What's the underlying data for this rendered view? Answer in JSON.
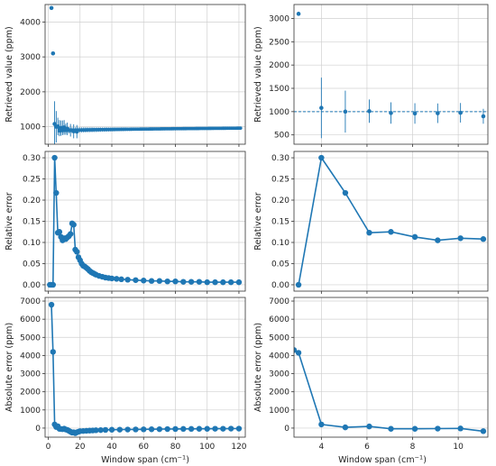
{
  "figure": {
    "accent_color": "#1f77b4",
    "xlabel_text": "Window span (cm",
    "xlabel_sup": "−1",
    "xlabel_close": ")"
  },
  "chart_data": [
    {
      "id": "top-left",
      "type": "scatter",
      "ylabel": "Retrieved value (ppm)",
      "xlim": [
        -2,
        124
      ],
      "ylim": [
        500,
        4500
      ],
      "xticks": [
        0,
        20,
        40,
        60,
        80,
        100,
        120
      ],
      "yticks": [
        1000,
        2000,
        3000,
        4000
      ],
      "show_xtick_labels": false,
      "grid": true,
      "dense": {
        "x_start": 7,
        "x_end": 121,
        "x_step": 1,
        "y_start": 880,
        "y_end": 960,
        "err_start": 110,
        "err_end": 12
      },
      "points": [
        {
          "x": 2.0,
          "y": 4400,
          "err": 0
        },
        {
          "x": 3.0,
          "y": 3100,
          "err": 0
        },
        {
          "x": 4.0,
          "y": 1080,
          "err": 650
        },
        {
          "x": 5.0,
          "y": 1000,
          "err": 450
        },
        {
          "x": 6.0,
          "y": 1010,
          "err": 250
        },
        {
          "x": 7.0,
          "y": 960,
          "err": 230
        },
        {
          "x": 8.0,
          "y": 960,
          "err": 220
        },
        {
          "x": 9.0,
          "y": 970,
          "err": 210
        },
        {
          "x": 10.0,
          "y": 980,
          "err": 210
        },
        {
          "x": 11.0,
          "y": 930,
          "err": 160
        },
        {
          "x": 12.0,
          "y": 940,
          "err": 180
        },
        {
          "x": 14.0,
          "y": 900,
          "err": 180
        },
        {
          "x": 16.0,
          "y": 870,
          "err": 200
        },
        {
          "x": 18.0,
          "y": 860,
          "err": 190
        }
      ]
    },
    {
      "id": "top-right",
      "type": "scatter",
      "ylabel": "Retrieved value (ppm)",
      "xlim": [
        2.8,
        11.3
      ],
      "ylim": [
        300,
        3300
      ],
      "xticks": [
        4,
        6,
        8,
        10
      ],
      "yticks": [
        500,
        1000,
        1500,
        2000,
        2500,
        3000
      ],
      "show_xtick_labels": false,
      "grid": true,
      "reference_line": 1000,
      "points": [
        {
          "x": 3.0,
          "y": 3100,
          "err": 0
        },
        {
          "x": 4.0,
          "y": 1080,
          "err": 650
        },
        {
          "x": 5.05,
          "y": 1000,
          "err": 450
        },
        {
          "x": 6.1,
          "y": 1010,
          "err": 250
        },
        {
          "x": 7.05,
          "y": 970,
          "err": 230
        },
        {
          "x": 8.1,
          "y": 960,
          "err": 220
        },
        {
          "x": 9.1,
          "y": 965,
          "err": 210
        },
        {
          "x": 10.1,
          "y": 975,
          "err": 210
        },
        {
          "x": 11.1,
          "y": 900,
          "err": 160
        }
      ]
    },
    {
      "id": "mid-left",
      "type": "line",
      "ylabel": "Relative error",
      "xlim": [
        -2,
        124
      ],
      "ylim": [
        -0.015,
        0.315
      ],
      "xticks": [
        0,
        20,
        40,
        60,
        80,
        100,
        120
      ],
      "yticks": [
        0.0,
        0.05,
        0.1,
        0.15,
        0.2,
        0.25,
        0.3
      ],
      "ytick_labels": [
        "0.00",
        "0.05",
        "0.10",
        "0.15",
        "0.20",
        "0.25",
        "0.30"
      ],
      "show_xtick_labels": false,
      "grid": true,
      "x": [
        1,
        2,
        3,
        4,
        5,
        6,
        7,
        8,
        9,
        10,
        11,
        12,
        13,
        14,
        15,
        16,
        17,
        18,
        19,
        20,
        21,
        22,
        23,
        24,
        25,
        26,
        27,
        28,
        29,
        30,
        32,
        34,
        36,
        38,
        40,
        43,
        46,
        50,
        55,
        60,
        65,
        70,
        75,
        80,
        85,
        90,
        95,
        100,
        105,
        110,
        115,
        120
      ],
      "y": [
        0.0,
        0.0,
        0.0,
        0.3,
        0.217,
        0.123,
        0.125,
        0.113,
        0.105,
        0.11,
        0.108,
        0.112,
        0.115,
        0.12,
        0.145,
        0.142,
        0.083,
        0.078,
        0.065,
        0.058,
        0.05,
        0.045,
        0.043,
        0.04,
        0.037,
        0.033,
        0.03,
        0.028,
        0.026,
        0.024,
        0.021,
        0.019,
        0.017,
        0.016,
        0.015,
        0.014,
        0.013,
        0.012,
        0.011,
        0.01,
        0.009,
        0.009,
        0.008,
        0.008,
        0.007,
        0.007,
        0.007,
        0.006,
        0.006,
        0.006,
        0.006,
        0.006
      ]
    },
    {
      "id": "mid-right",
      "type": "line",
      "ylabel": "Relative error",
      "xlim": [
        2.8,
        11.3
      ],
      "ylim": [
        -0.015,
        0.315
      ],
      "xticks": [
        4,
        6,
        8,
        10
      ],
      "yticks": [
        0.0,
        0.05,
        0.1,
        0.15,
        0.2,
        0.25,
        0.3
      ],
      "ytick_labels": [
        "0.00",
        "0.05",
        "0.10",
        "0.15",
        "0.20",
        "0.25",
        "0.30"
      ],
      "show_xtick_labels": false,
      "grid": true,
      "x": [
        3.0,
        4.0,
        5.05,
        6.1,
        7.05,
        8.1,
        9.1,
        10.1,
        11.1
      ],
      "y": [
        0.0,
        0.3,
        0.217,
        0.123,
        0.125,
        0.113,
        0.105,
        0.11,
        0.108
      ]
    },
    {
      "id": "bottom-left",
      "type": "line",
      "ylabel": "Absolute error (ppm)",
      "xlim": [
        -2,
        124
      ],
      "ylim": [
        -500,
        7200
      ],
      "xticks": [
        0,
        20,
        40,
        60,
        80,
        100,
        120
      ],
      "yticks": [
        0,
        1000,
        2000,
        3000,
        4000,
        5000,
        6000,
        7000
      ],
      "show_xtick_labels": true,
      "grid": true,
      "x": [
        2,
        3,
        4,
        5,
        6,
        7,
        8,
        9,
        10,
        11,
        12,
        13,
        14,
        15,
        16,
        17,
        18,
        19,
        20,
        22,
        24,
        26,
        28,
        30,
        33,
        36,
        40,
        45,
        50,
        55,
        60,
        65,
        70,
        75,
        80,
        85,
        90,
        95,
        100,
        105,
        110,
        115,
        120
      ],
      "y": [
        6800,
        4200,
        200,
        60,
        100,
        -40,
        -50,
        -60,
        -30,
        -80,
        -100,
        -150,
        -200,
        -250,
        -230,
        -280,
        -230,
        -200,
        -170,
        -160,
        -150,
        -140,
        -130,
        -120,
        -110,
        -100,
        -90,
        -85,
        -80,
        -75,
        -70,
        -65,
        -60,
        -55,
        -50,
        -45,
        -45,
        -40,
        -40,
        -35,
        -35,
        -30,
        -30
      ]
    },
    {
      "id": "bottom-right",
      "type": "line",
      "ylabel": "Absolute error (ppm)",
      "xlim": [
        2.8,
        11.3
      ],
      "ylim": [
        -500,
        7200
      ],
      "xticks": [
        4,
        6,
        8,
        10
      ],
      "yticks": [
        0,
        1000,
        2000,
        3000,
        4000,
        5000,
        6000,
        7000
      ],
      "show_xtick_labels": true,
      "grid": true,
      "x": [
        2.8,
        3.0,
        4.0,
        5.05,
        6.1,
        7.05,
        8.1,
        9.1,
        10.1,
        11.1
      ],
      "y": [
        4300,
        4150,
        200,
        40,
        90,
        -40,
        -40,
        -30,
        -20,
        -170
      ]
    }
  ]
}
